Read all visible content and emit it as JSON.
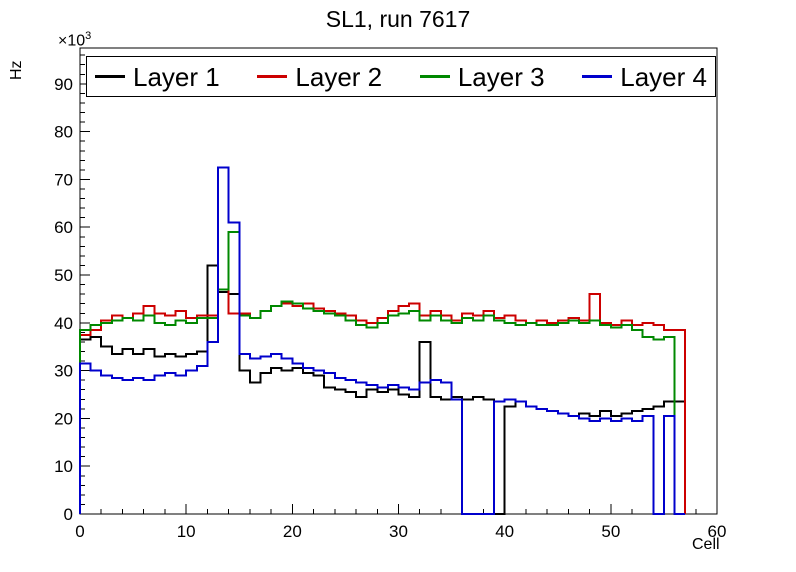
{
  "title": "SL1, run 7617",
  "axes": {
    "x_label": "Cell",
    "y_label": "Hz",
    "y_scale_base": "×10",
    "y_scale_exponent": "3"
  },
  "legend": {
    "entries": [
      {
        "label": "Layer 1",
        "color": "#000000"
      },
      {
        "label": "Layer 2",
        "color": "#cc0000"
      },
      {
        "label": "Layer 3",
        "color": "#008800"
      },
      {
        "label": "Layer 4",
        "color": "#0000cc"
      }
    ]
  },
  "chart_data": {
    "type": "line",
    "subtype": "step-histogram",
    "title": "SL1, run 7617",
    "xlabel": "Cell",
    "ylabel": "Hz",
    "values_unit": "10^3 Hz",
    "x_range": [
      0,
      60
    ],
    "y_range": [
      0,
      97.5
    ],
    "x_ticks": [
      0,
      10,
      20,
      30,
      40,
      50,
      60
    ],
    "y_ticks": [
      0,
      10,
      20,
      30,
      40,
      50,
      60,
      70,
      80,
      90
    ],
    "x_minor_step": 2,
    "y_minor_step": 2,
    "bin_width": 1,
    "legend_position": "top-inside",
    "grid": false,
    "series": [
      {
        "name": "Layer 1",
        "color": "#000000",
        "values": [
          36.5,
          37,
          35,
          33.5,
          34.5,
          33.5,
          34.5,
          33,
          33.5,
          33,
          33.5,
          34,
          52,
          46.5,
          46,
          30,
          27.5,
          29.5,
          30.5,
          30,
          30.5,
          29.5,
          29,
          26.5,
          26,
          25.5,
          24.5,
          26,
          25.5,
          26,
          25,
          24.5,
          36,
          24.5,
          24,
          24.5,
          24,
          24.5,
          24,
          0,
          22.5,
          23.5,
          22.5,
          22,
          21.5,
          21,
          20.5,
          21,
          20.5,
          21.5,
          20.5,
          21,
          21.5,
          22,
          22.5,
          23.5,
          23.5
        ]
      },
      {
        "name": "Layer 2",
        "color": "#cc0000",
        "values": [
          37.5,
          38.5,
          40.5,
          41.5,
          41,
          42,
          43.5,
          42,
          41.5,
          42.5,
          41,
          41.5,
          41.5,
          47,
          42,
          42,
          41,
          42.5,
          43.5,
          44,
          43.5,
          44,
          43,
          42.5,
          42,
          41.5,
          40.5,
          40,
          41,
          42.5,
          43.5,
          44,
          41.5,
          42.5,
          41.5,
          40.5,
          42,
          41.5,
          42.5,
          41,
          41.5,
          40.5,
          40,
          40.5,
          40,
          40.5,
          41,
          40.5,
          46,
          40,
          39.5,
          40.5,
          39.5,
          40,
          39.5,
          38.5,
          38.5
        ]
      },
      {
        "name": "Layer 3",
        "color": "#008800",
        "values": [
          38.5,
          39.5,
          40,
          40.5,
          41,
          40.5,
          41.5,
          40,
          39.5,
          40.5,
          40,
          41,
          41,
          47,
          59,
          41.5,
          41,
          42.5,
          43.5,
          44.5,
          44,
          43,
          42.5,
          42,
          41.5,
          40.5,
          39.5,
          39,
          40,
          41.5,
          42,
          42.5,
          40.5,
          41.5,
          40.5,
          40,
          41,
          40.5,
          41.5,
          40.5,
          40,
          39.5,
          40,
          39.5,
          39.5,
          40,
          40.5,
          40,
          40.5,
          39.5,
          39,
          39.5,
          38.5,
          37,
          36.5,
          37,
          0
        ]
      },
      {
        "name": "Layer 4",
        "color": "#0000cc",
        "values": [
          31.5,
          30,
          29,
          28.5,
          28,
          28.5,
          28,
          29,
          29.5,
          29,
          30,
          31,
          36,
          72.5,
          61,
          33.5,
          32.5,
          33,
          33.5,
          32.5,
          31.5,
          30.5,
          30,
          29.5,
          28.5,
          28,
          27.5,
          27,
          26.5,
          27,
          26.5,
          26,
          27.5,
          28,
          27.5,
          24,
          0,
          0,
          0,
          23.5,
          24,
          23.5,
          22.5,
          22,
          21.5,
          21,
          20.5,
          20,
          19.5,
          20,
          19.5,
          20,
          19.5,
          20.5,
          0,
          20.5,
          0
        ]
      }
    ]
  }
}
